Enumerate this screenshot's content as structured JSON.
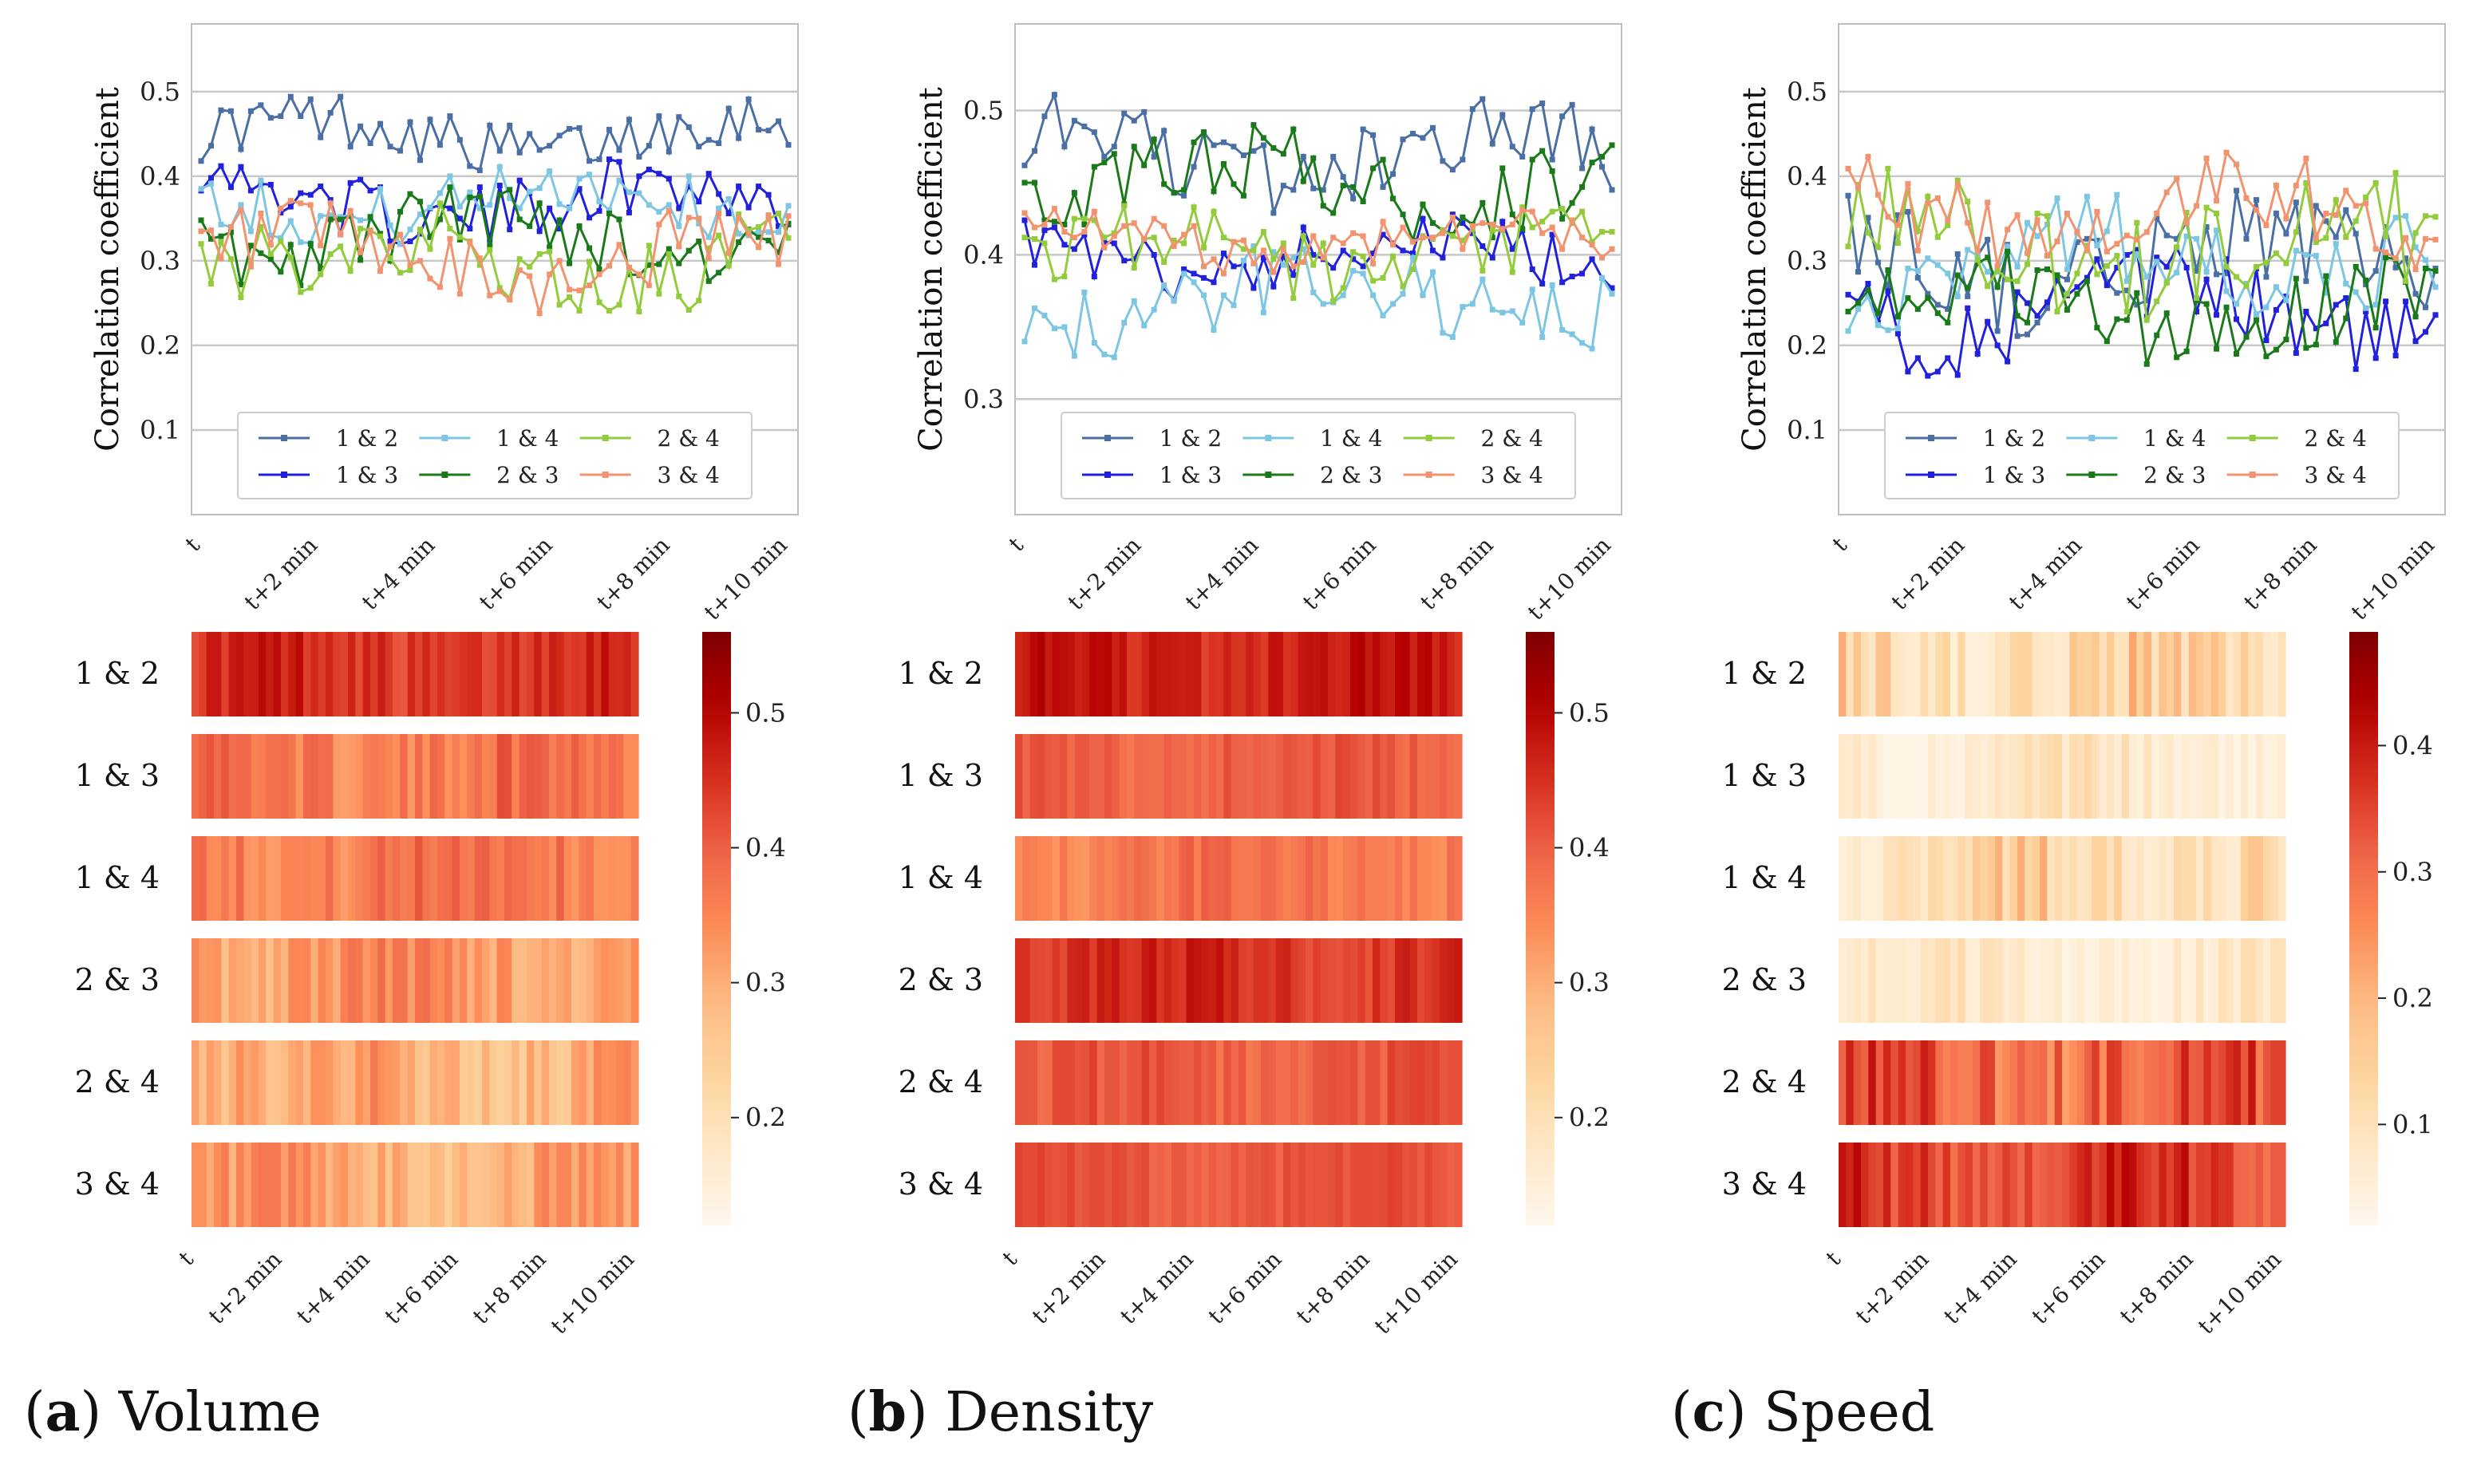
{
  "figure": {
    "panels": [
      {
        "id": "a",
        "caption_letter": "a",
        "caption_text": "Volume",
        "line_chart": {
          "type": "line",
          "ylabel": "Correlation coefficient",
          "ylim": [
            0.0,
            0.58
          ],
          "yticks": [
            0.1,
            0.2,
            0.3,
            0.4,
            0.5
          ],
          "ytick_labels": [
            "0.1",
            "0.2",
            "0.3",
            "0.4",
            "0.5"
          ],
          "grid": true,
          "legend_position": "lower-center"
        },
        "heatmap": {
          "type": "heatmap",
          "colorbar_range": [
            0.12,
            0.56
          ],
          "colorbar_ticks": [
            0.2,
            0.3,
            0.4,
            0.5
          ],
          "colorbar_tick_labels": [
            "0.2",
            "0.3",
            "0.4",
            "0.5"
          ]
        },
        "series_centers": [
          0.45,
          0.37,
          0.37,
          0.33,
          0.3,
          0.3
        ],
        "series_amps": [
          0.04,
          0.045,
          0.045,
          0.05,
          0.06,
          0.055
        ]
      },
      {
        "id": "b",
        "caption_letter": "b",
        "caption_text": "Density",
        "line_chart": {
          "type": "line",
          "ylabel": "Correlation coefficient",
          "ylim": [
            0.22,
            0.56
          ],
          "yticks": [
            0.3,
            0.4,
            0.5
          ],
          "ytick_labels": [
            "0.3",
            "0.4",
            "0.5"
          ],
          "grid": true,
          "legend_position": "lower-center"
        },
        "heatmap": {
          "type": "heatmap",
          "colorbar_range": [
            0.12,
            0.56
          ],
          "colorbar_ticks": [
            0.2,
            0.3,
            0.4,
            0.5
          ],
          "colorbar_tick_labels": [
            "0.2",
            "0.3",
            "0.4",
            "0.5"
          ]
        },
        "series_centers": [
          0.47,
          0.4,
          0.37,
          0.45,
          0.4,
          0.41
        ],
        "series_amps": [
          0.035,
          0.025,
          0.035,
          0.035,
          0.03,
          0.02
        ]
      },
      {
        "id": "c",
        "caption_letter": "c",
        "caption_text": "Speed",
        "line_chart": {
          "type": "line",
          "ylabel": "Correlation coefficient",
          "ylim": [
            0.0,
            0.58
          ],
          "yticks": [
            0.1,
            0.2,
            0.3,
            0.4,
            0.5
          ],
          "ytick_labels": [
            "0.1",
            "0.2",
            "0.3",
            "0.4",
            "0.5"
          ],
          "grid": true,
          "legend_position": "lower-center"
        },
        "heatmap": {
          "type": "heatmap",
          "colorbar_range": [
            0.02,
            0.49
          ],
          "colorbar_ticks": [
            0.1,
            0.2,
            0.3,
            0.4
          ],
          "colorbar_tick_labels": [
            "0.1",
            "0.2",
            "0.3",
            "0.4"
          ]
        },
        "series_centers": [
          0.3,
          0.24,
          0.3,
          0.24,
          0.32,
          0.36
        ],
        "series_amps": [
          0.07,
          0.06,
          0.07,
          0.06,
          0.08,
          0.06
        ]
      }
    ],
    "pairs": [
      "1 & 2",
      "1 & 3",
      "1 & 4",
      "2 & 3",
      "2 & 4",
      "3 & 4"
    ],
    "legend_order": [
      0,
      2,
      4,
      1,
      3,
      5
    ],
    "series_colors": [
      "#4a6fa5",
      "#2020dd",
      "#7cc6e4",
      "#1a7a1a",
      "#92cc3c",
      "#f29370"
    ],
    "xtick_labels": [
      "t",
      "t+2 min",
      "t+4 min",
      "t+6 min",
      "t+8 min",
      "t+10 min"
    ],
    "n_points": 60
  }
}
